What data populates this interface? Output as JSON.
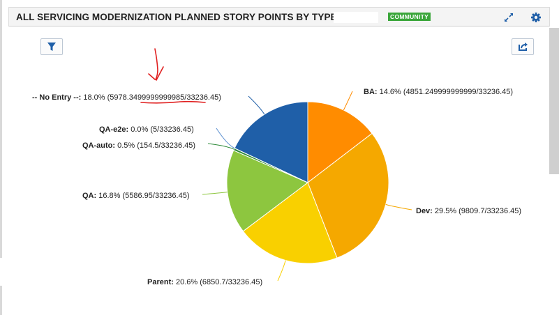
{
  "header": {
    "title": "ALL SERVICING MODERNIZATION PLANNED STORY POINTS BY TYPE",
    "badge": "COMMUNITY",
    "expand_icon": "expand-arrows-icon",
    "settings_icon": "gear-icon"
  },
  "toolbar": {
    "filter_icon": "filter-icon",
    "export_icon": "export-icon"
  },
  "colors": {
    "accent_blue": "#1f5fa8",
    "badge_green": "#3aa63a",
    "annotation_red": "#e02020"
  },
  "chart_data": {
    "type": "pie",
    "total": "33236.45",
    "slices": [
      {
        "name": "BA",
        "percent": "14.6%",
        "value": 4851.249999999999,
        "value_text": "4851.249999999999",
        "color": "#ff8c00"
      },
      {
        "name": "Dev",
        "percent": "29.5%",
        "value": 9809.7,
        "value_text": "9809.7",
        "color": "#f5a800"
      },
      {
        "name": "Parent",
        "percent": "20.6%",
        "value": 6850.7,
        "value_text": "6850.7",
        "color": "#f9d000"
      },
      {
        "name": "QA",
        "percent": "16.8%",
        "value": 5586.95,
        "value_text": "5586.95",
        "color": "#8dc63f"
      },
      {
        "name": "QA-auto",
        "percent": "0.5%",
        "value": 154.5,
        "value_text": "154.5",
        "color": "#2e8b3a"
      },
      {
        "name": "QA-e2e",
        "percent": "0.0%",
        "value": 5,
        "value_text": "5",
        "color": "#5b8fd0"
      },
      {
        "name": "-- No Entry --",
        "percent": "18.0%",
        "value": 5978.3499999999985,
        "value_text": "5978.3499999999985",
        "color": "#1f5fa8"
      }
    ]
  }
}
